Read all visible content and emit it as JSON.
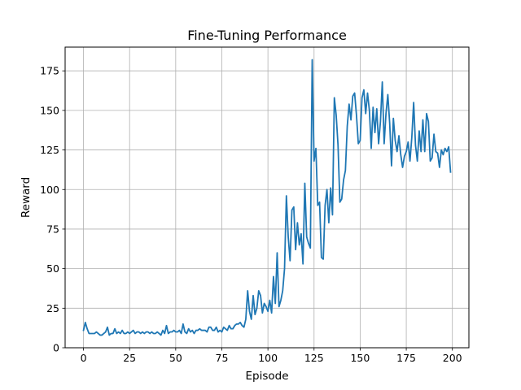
{
  "chart_data": {
    "type": "line",
    "title": "Fine-Tuning Performance",
    "xlabel": "Episode",
    "ylabel": "Reward",
    "xlim": [
      -9.95,
      208.95
    ],
    "ylim": [
      0,
      190
    ],
    "xticks": [
      0,
      25,
      50,
      75,
      100,
      125,
      150,
      175,
      200
    ],
    "yticks": [
      0,
      25,
      50,
      75,
      100,
      125,
      150,
      175
    ],
    "grid": true,
    "line_color": "#1f77b4",
    "series": [
      {
        "x": [
          0,
          1,
          2,
          3,
          4,
          5,
          6,
          7,
          8,
          9,
          10,
          11,
          12,
          13,
          14,
          15,
          16,
          17,
          18,
          19,
          20,
          21,
          22,
          23,
          24,
          25,
          26,
          27,
          28,
          29,
          30,
          31,
          32,
          33,
          34,
          35,
          36,
          37,
          38,
          39,
          40,
          41,
          42,
          43,
          44,
          45,
          46,
          47,
          48,
          49,
          50,
          51,
          52,
          53,
          54,
          55,
          56,
          57,
          58,
          59,
          60,
          61,
          62,
          63,
          64,
          65,
          66,
          67,
          68,
          69,
          70,
          71,
          72,
          73,
          74,
          75,
          76,
          77,
          78,
          79,
          80,
          81,
          82,
          83,
          84,
          85,
          86,
          87,
          88,
          89,
          90,
          91,
          92,
          93,
          94,
          95,
          96,
          97,
          98,
          99,
          100,
          101,
          102,
          103,
          104,
          105,
          106,
          107,
          108,
          109,
          110,
          111,
          112,
          113,
          114,
          115,
          116,
          117,
          118,
          119,
          120,
          121,
          122,
          123,
          124,
          125,
          126,
          127,
          128,
          129,
          130,
          131,
          132,
          133,
          134,
          135,
          136,
          137,
          138,
          139,
          140,
          141,
          142,
          143,
          144,
          145,
          146,
          147,
          148,
          149,
          150,
          151,
          152,
          153,
          154,
          155,
          156,
          157,
          158,
          159,
          160,
          161,
          162,
          163,
          164,
          165,
          166,
          167,
          168,
          169,
          170,
          171,
          172,
          173,
          174,
          175,
          176,
          177,
          178,
          179,
          180,
          181,
          182,
          183,
          184,
          185,
          186,
          187,
          188,
          189,
          190,
          191,
          192,
          193,
          194,
          195,
          196,
          197,
          198,
          199
        ],
        "values": [
          11,
          16,
          12,
          9,
          9,
          9,
          9,
          10,
          9,
          8,
          8,
          9,
          10,
          13,
          8,
          9,
          9,
          12,
          9,
          10,
          9,
          11,
          9,
          9,
          10,
          9,
          10,
          11,
          9,
          10,
          10,
          9,
          10,
          9,
          10,
          10,
          9,
          10,
          9,
          9,
          10,
          9,
          8,
          11,
          9,
          14,
          9,
          10,
          10,
          11,
          10,
          10,
          11,
          9,
          15,
          10,
          9,
          12,
          10,
          11,
          9,
          11,
          11,
          12,
          11,
          11,
          11,
          10,
          13,
          13,
          11,
          11,
          13,
          10,
          11,
          10,
          13,
          12,
          11,
          14,
          12,
          12,
          14,
          15,
          15,
          16,
          14,
          13,
          18,
          36,
          23,
          18,
          33,
          21,
          25,
          36,
          33,
          22,
          28,
          26,
          23,
          30,
          22,
          45,
          28,
          60,
          26,
          30,
          36,
          50,
          96,
          70,
          55,
          87,
          89,
          62,
          79,
          65,
          72,
          53,
          104,
          70,
          66,
          63,
          182,
          118,
          126,
          90,
          92,
          57,
          56,
          90,
          100,
          79,
          101,
          84,
          158,
          147,
          128,
          92,
          94,
          106,
          112,
          140,
          154,
          144,
          159,
          161,
          147,
          129,
          131,
          158,
          163,
          148,
          161,
          150,
          126,
          152,
          136,
          151,
          129,
          143,
          168,
          129,
          148,
          160,
          142,
          115,
          145,
          131,
          124,
          134,
          122,
          114,
          121,
          124,
          130,
          118,
          133,
          155,
          128,
          118,
          137,
          124,
          144,
          124,
          148,
          143,
          118,
          120,
          135,
          124,
          123,
          114,
          125,
          122,
          126,
          124,
          127,
          111
        ]
      }
    ]
  }
}
